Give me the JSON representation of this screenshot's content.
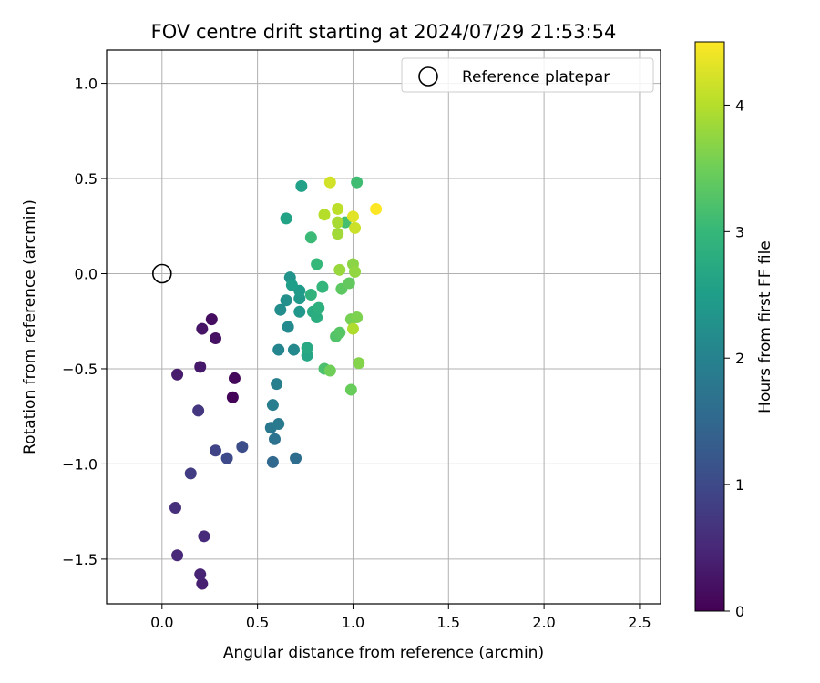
{
  "chart_data": {
    "type": "scatter",
    "title": "FOV centre drift starting at 2024/07/29 21:53:54",
    "xlabel": "Angular distance from reference (arcmin)",
    "ylabel": "Rotation from reference (arcmin)",
    "xlim": [
      -0.29,
      2.61
    ],
    "ylim": [
      -1.735,
      1.175
    ],
    "xticks": [
      0.0,
      0.5,
      1.0,
      1.5,
      2.0,
      2.5
    ],
    "xtick_labels": [
      "0.0",
      "0.5",
      "1.0",
      "1.5",
      "2.0",
      "2.5"
    ],
    "yticks": [
      1.0,
      0.5,
      0.0,
      -0.5,
      -1.0,
      -1.5
    ],
    "ytick_labels": [
      "1.0",
      "0.5",
      "0.0",
      "−0.5",
      "−1.0",
      "−1.5"
    ],
    "grid": true,
    "legend": {
      "position": "top-right",
      "entries": [
        "Reference platepar"
      ]
    },
    "reference_point": {
      "x": 0.0,
      "y": 0.0
    },
    "colorbar": {
      "label": "Hours from first FF file",
      "min": 0,
      "max": 4.5,
      "ticks": [
        0,
        1,
        2,
        3,
        4
      ],
      "tick_labels": [
        "0",
        "1",
        "2",
        "3",
        "4"
      ],
      "colormap": "viridis"
    },
    "colormap_stops": [
      "#440154",
      "#482878",
      "#3e4a89",
      "#31688e",
      "#26828e",
      "#1f9e89",
      "#35b779",
      "#6ece58",
      "#b5de2b",
      "#fde725"
    ],
    "points": [
      {
        "x": 0.37,
        "y": -0.65,
        "h": 0.05
      },
      {
        "x": 0.38,
        "y": -0.55,
        "h": 0.1
      },
      {
        "x": 0.26,
        "y": -0.24,
        "h": 0.15
      },
      {
        "x": 0.28,
        "y": -0.34,
        "h": 0.2
      },
      {
        "x": 0.21,
        "y": -0.29,
        "h": 0.25
      },
      {
        "x": 0.2,
        "y": -0.49,
        "h": 0.3
      },
      {
        "x": 0.08,
        "y": -0.53,
        "h": 0.35
      },
      {
        "x": 0.21,
        "y": -1.63,
        "h": 0.4
      },
      {
        "x": 0.2,
        "y": -1.58,
        "h": 0.45
      },
      {
        "x": 0.08,
        "y": -1.48,
        "h": 0.5
      },
      {
        "x": 0.22,
        "y": -1.38,
        "h": 0.55
      },
      {
        "x": 0.07,
        "y": -1.23,
        "h": 0.6
      },
      {
        "x": 0.19,
        "y": -0.72,
        "h": 0.7
      },
      {
        "x": 0.15,
        "y": -1.05,
        "h": 0.8
      },
      {
        "x": 0.28,
        "y": -0.93,
        "h": 0.9
      },
      {
        "x": 0.34,
        "y": -0.97,
        "h": 1.0
      },
      {
        "x": 0.42,
        "y": -0.91,
        "h": 1.05
      },
      {
        "x": 0.58,
        "y": -0.99,
        "h": 1.5
      },
      {
        "x": 0.7,
        "y": -0.97,
        "h": 1.6
      },
      {
        "x": 0.59,
        "y": -0.87,
        "h": 1.7
      },
      {
        "x": 0.57,
        "y": -0.81,
        "h": 1.8
      },
      {
        "x": 0.61,
        "y": -0.79,
        "h": 1.85
      },
      {
        "x": 0.58,
        "y": -0.69,
        "h": 1.9
      },
      {
        "x": 0.6,
        "y": -0.58,
        "h": 1.95
      },
      {
        "x": 0.61,
        "y": -0.4,
        "h": 2.05
      },
      {
        "x": 0.69,
        "y": -0.4,
        "h": 2.1
      },
      {
        "x": 0.66,
        "y": -0.28,
        "h": 2.15
      },
      {
        "x": 0.62,
        "y": -0.19,
        "h": 2.2
      },
      {
        "x": 0.65,
        "y": -0.14,
        "h": 2.25
      },
      {
        "x": 0.67,
        "y": -0.02,
        "h": 2.3
      },
      {
        "x": 0.72,
        "y": -0.2,
        "h": 2.35
      },
      {
        "x": 0.72,
        "y": -0.13,
        "h": 2.4
      },
      {
        "x": 0.72,
        "y": -0.09,
        "h": 2.45
      },
      {
        "x": 0.68,
        "y": -0.06,
        "h": 2.5
      },
      {
        "x": 0.73,
        "y": 0.46,
        "h": 2.55
      },
      {
        "x": 0.65,
        "y": 0.29,
        "h": 2.6
      },
      {
        "x": 0.76,
        "y": -0.43,
        "h": 2.65
      },
      {
        "x": 0.76,
        "y": -0.39,
        "h": 2.7
      },
      {
        "x": 0.79,
        "y": -0.2,
        "h": 2.75
      },
      {
        "x": 0.81,
        "y": -0.23,
        "h": 2.8
      },
      {
        "x": 0.82,
        "y": -0.18,
        "h": 2.85
      },
      {
        "x": 0.78,
        "y": -0.11,
        "h": 2.9
      },
      {
        "x": 0.84,
        "y": -0.07,
        "h": 2.95
      },
      {
        "x": 0.81,
        "y": 0.05,
        "h": 3.0
      },
      {
        "x": 0.78,
        "y": 0.19,
        "h": 3.05
      },
      {
        "x": 1.02,
        "y": 0.48,
        "h": 3.1
      },
      {
        "x": 0.96,
        "y": 0.27,
        "h": 3.15
      },
      {
        "x": 0.85,
        "y": -0.5,
        "h": 3.2
      },
      {
        "x": 0.91,
        "y": -0.33,
        "h": 3.25
      },
      {
        "x": 0.93,
        "y": -0.31,
        "h": 3.3
      },
      {
        "x": 0.94,
        "y": -0.08,
        "h": 3.35
      },
      {
        "x": 0.98,
        "y": -0.05,
        "h": 3.4
      },
      {
        "x": 0.99,
        "y": -0.61,
        "h": 3.45
      },
      {
        "x": 0.88,
        "y": -0.51,
        "h": 3.5
      },
      {
        "x": 0.99,
        "y": -0.24,
        "h": 3.55
      },
      {
        "x": 1.02,
        "y": -0.23,
        "h": 3.6
      },
      {
        "x": 1.03,
        "y": -0.47,
        "h": 3.65
      },
      {
        "x": 1.0,
        "y": 0.05,
        "h": 3.7
      },
      {
        "x": 1.01,
        "y": 0.01,
        "h": 3.75
      },
      {
        "x": 0.93,
        "y": 0.02,
        "h": 3.8
      },
      {
        "x": 0.92,
        "y": 0.21,
        "h": 3.85
      },
      {
        "x": 0.92,
        "y": 0.27,
        "h": 3.9
      },
      {
        "x": 1.0,
        "y": -0.29,
        "h": 3.95
      },
      {
        "x": 0.85,
        "y": 0.31,
        "h": 4.0
      },
      {
        "x": 0.92,
        "y": 0.34,
        "h": 4.05
      },
      {
        "x": 1.01,
        "y": 0.24,
        "h": 4.15
      },
      {
        "x": 0.88,
        "y": 0.48,
        "h": 4.2
      },
      {
        "x": 1.0,
        "y": 0.3,
        "h": 4.3
      },
      {
        "x": 1.12,
        "y": 0.34,
        "h": 4.5
      }
    ]
  }
}
